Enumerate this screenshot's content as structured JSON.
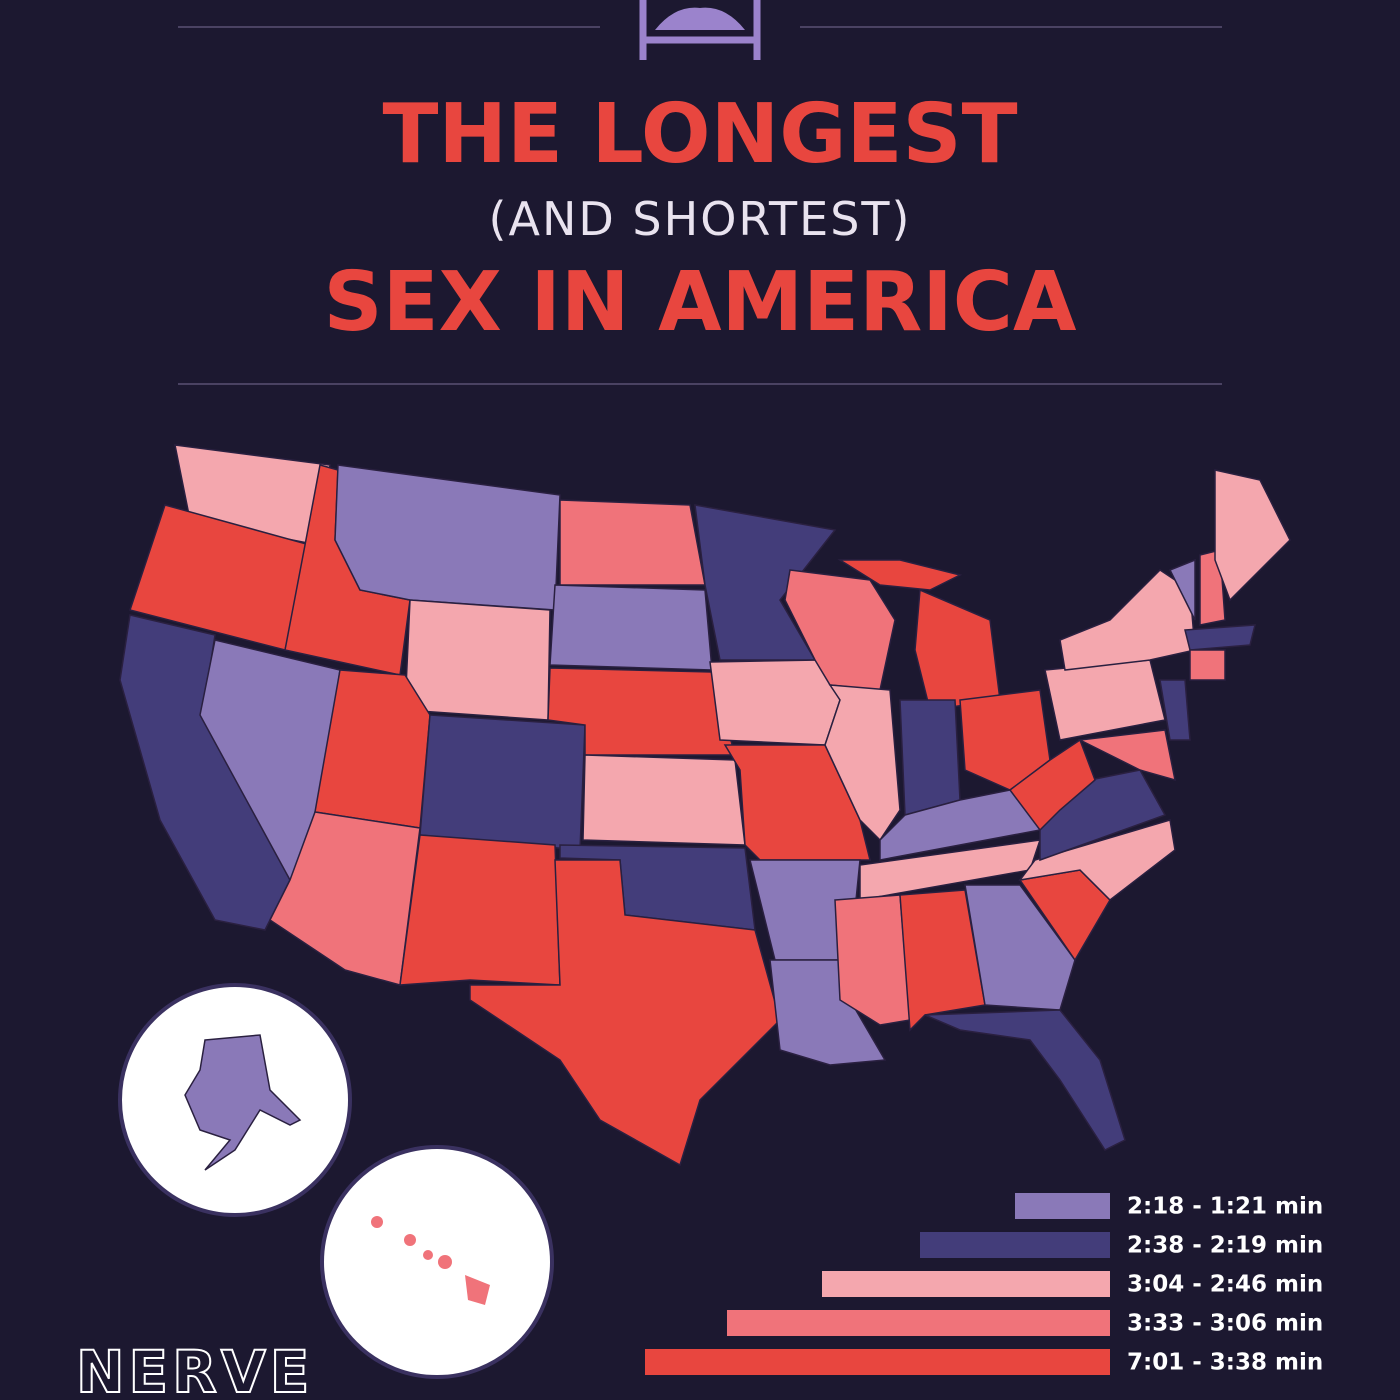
{
  "header": {
    "title_line1": "THE LONGEST",
    "title_line2": "(AND SHORTEST)",
    "title_line3": "SEX IN AMERICA"
  },
  "legend": {
    "items": [
      {
        "label": "2:18 - 1:21 min"
      },
      {
        "label": "2:38 - 2:19 min"
      },
      {
        "label": "3:04 - 2:46 min"
      },
      {
        "label": "3:33 - 3:06 min"
      },
      {
        "label": "7:01 - 3:38 min"
      }
    ]
  },
  "brand": "NERVE"
}
